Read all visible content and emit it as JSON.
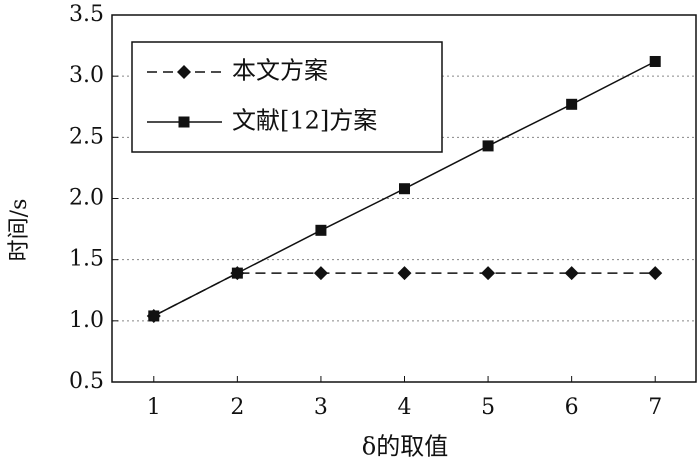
{
  "chart_data": {
    "type": "line",
    "x_label": "δ的取值",
    "y_label": "时间/s",
    "x": [
      1,
      2,
      3,
      4,
      5,
      6,
      7
    ],
    "xlim": [
      0.5,
      7.5
    ],
    "xticks": [
      1,
      2,
      3,
      4,
      5,
      6,
      7
    ],
    "ylim": [
      0.5,
      3.5
    ],
    "yticks": [
      0.5,
      {
        "value": 1,
        "label": "1.0"
      },
      1.5,
      {
        "value": 2,
        "label": "2.0"
      },
      2.5,
      {
        "value": 3,
        "label": "3.0"
      },
      3.5
    ],
    "grid": true,
    "legend": "upper-left",
    "series": [
      {
        "name": "本文方案",
        "color": "#111111",
        "dash": true,
        "marker": "diamond",
        "values": [
          1.04,
          1.39,
          1.39,
          1.39,
          1.39,
          1.39,
          1.39
        ]
      },
      {
        "name": "文献[12]方案",
        "color": "#111111",
        "dash": false,
        "marker": "square",
        "values": [
          1.04,
          1.39,
          1.74,
          2.08,
          2.43,
          2.77,
          3.12
        ]
      }
    ]
  }
}
